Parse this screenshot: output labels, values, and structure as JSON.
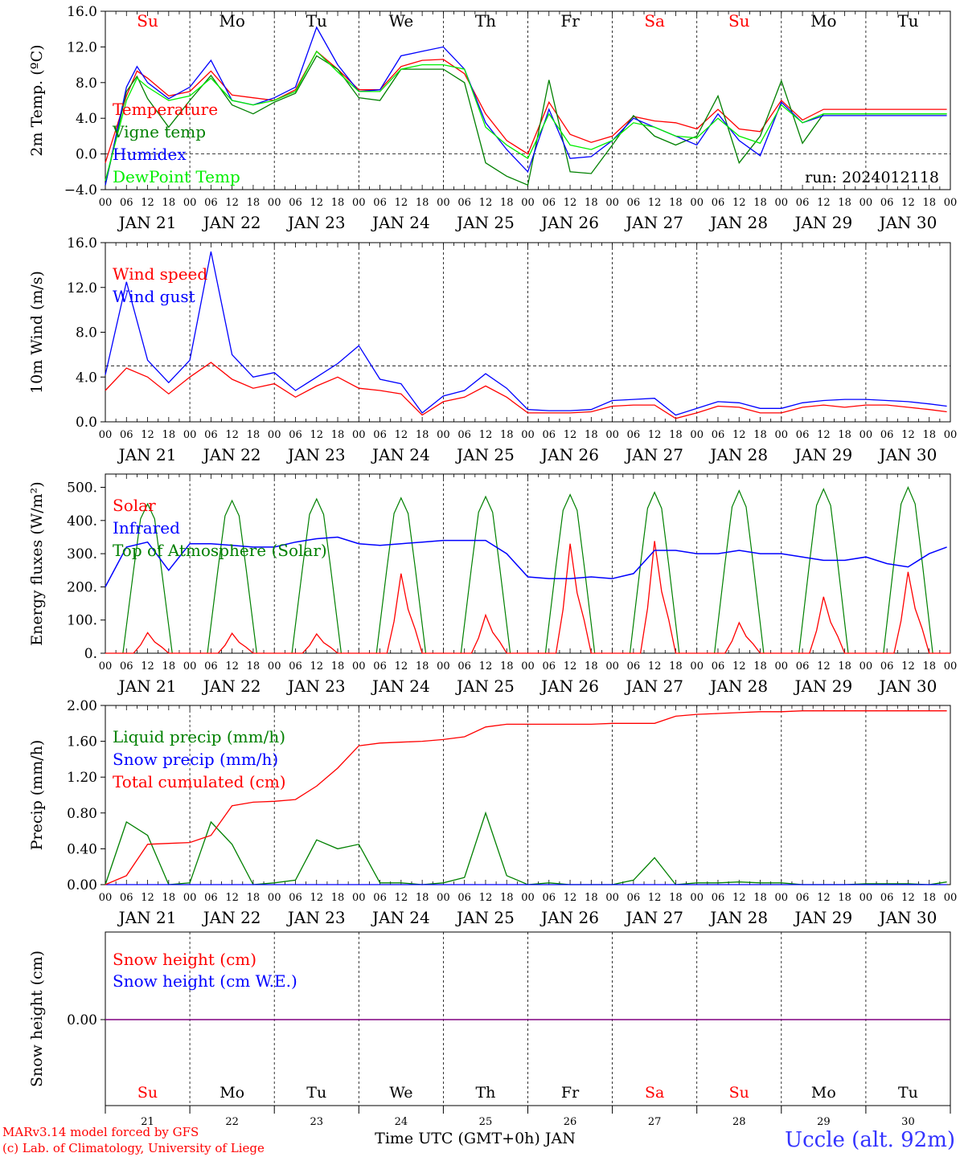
{
  "chart_data": [
    {
      "type": "line",
      "ylabel": "2m Temp. (ºC)",
      "yticks": [
        "16.0",
        "12.0",
        "8.0",
        "4.0",
        "0.0",
        "−4.0"
      ],
      "ylim": [
        -4,
        16
      ],
      "run_label": "run: 2024012118",
      "legend": [
        {
          "name": "Temperature",
          "color": "#ff0000"
        },
        {
          "name": "Vigne temp",
          "color": "#008000"
        },
        {
          "name": "Humidex",
          "color": "#0000ff"
        },
        {
          "name": "DewPoint Temp",
          "color": "#00ee00"
        }
      ],
      "x_hours": [
        0,
        6,
        9,
        12,
        18,
        24,
        30,
        36,
        42,
        48,
        54,
        60,
        66,
        72,
        78,
        84,
        90,
        96,
        102,
        108,
        114,
        120,
        126,
        132,
        138,
        144,
        150,
        156,
        162,
        168,
        174,
        180,
        186,
        192,
        198,
        204,
        210,
        216,
        222,
        228,
        234,
        239
      ],
      "series": [
        {
          "name": "Temperature",
          "color": "#ff0000",
          "values": [
            -1,
            6.5,
            9.3,
            8.5,
            6.5,
            7,
            9.3,
            6.6,
            6.3,
            6.0,
            7.2,
            11.5,
            9.5,
            7.2,
            7.2,
            9.8,
            10.5,
            10.6,
            9.0,
            4.5,
            1.5,
            0,
            5.8,
            2.2,
            1.3,
            2.0,
            4.2,
            3.7,
            3.5,
            2.8,
            5.0,
            2.8,
            2.5,
            6.0,
            3.8,
            5.0,
            5.0,
            5.0,
            5.0,
            5.0,
            5.0,
            5.0
          ]
        },
        {
          "name": "Vigne temp",
          "color": "#008000",
          "values": [
            -3.5,
            7.0,
            8.7,
            6.2,
            3.0,
            6.0,
            8.8,
            5.5,
            4.5,
            5.8,
            6.8,
            11.0,
            9.5,
            6.3,
            6.0,
            9.5,
            9.5,
            9.5,
            8.0,
            -1.0,
            -2.5,
            -3.5,
            8.3,
            -2.0,
            -2.2,
            1.0,
            4.3,
            2.0,
            1.0,
            2.0,
            6.5,
            -1.0,
            2.0,
            8.2,
            1.2,
            4.5,
            4.5,
            4.5,
            4.5,
            4.5,
            4.5,
            4.5
          ]
        },
        {
          "name": "Humidex",
          "color": "#0000ff",
          "values": [
            -3.5,
            7.5,
            9.8,
            8.0,
            6.2,
            7.5,
            10.5,
            6.0,
            5.5,
            6.3,
            7.5,
            14.2,
            10.0,
            7.0,
            7.2,
            11.0,
            11.5,
            12.0,
            9.5,
            3.5,
            0.5,
            -2.0,
            5.0,
            -0.5,
            -0.3,
            1.5,
            4.0,
            3.0,
            2.0,
            1.0,
            4.5,
            1.5,
            -0.2,
            5.8,
            3.5,
            4.3,
            4.3,
            4.3,
            4.3,
            4.3,
            4.3,
            4.3
          ]
        },
        {
          "name": "DewPoint Temp",
          "color": "#00ee00",
          "values": [
            -3,
            6,
            8.5,
            7.5,
            6,
            6.5,
            8.5,
            6.0,
            5.5,
            6.0,
            7.0,
            11.5,
            9.2,
            7.0,
            7.0,
            9.5,
            10.0,
            10.0,
            9.5,
            3.0,
            1.0,
            -0.5,
            4.5,
            1.0,
            0.5,
            1.5,
            3.5,
            3.0,
            2.0,
            1.8,
            4.0,
            2.0,
            1.2,
            5.5,
            3.5,
            4.5,
            4.5,
            4.5,
            4.5,
            4.5,
            4.5,
            4.5
          ]
        }
      ]
    },
    {
      "type": "line",
      "ylabel": "10m Wind (m/s)",
      "yticks": [
        "16.0",
        "12.0",
        "8.0",
        "4.0",
        "0.0"
      ],
      "ylim": [
        0,
        16
      ],
      "reference_line": 5.0,
      "legend": [
        {
          "name": "Wind speed",
          "color": "#ff0000"
        },
        {
          "name": "Wind gust",
          "color": "#0000ff"
        }
      ],
      "x_hours": [
        0,
        6,
        12,
        18,
        24,
        30,
        36,
        42,
        48,
        54,
        60,
        66,
        72,
        78,
        84,
        90,
        96,
        102,
        108,
        114,
        120,
        126,
        132,
        138,
        144,
        150,
        156,
        162,
        168,
        174,
        180,
        186,
        192,
        198,
        204,
        210,
        216,
        222,
        228,
        234,
        239
      ],
      "series": [
        {
          "name": "Wind speed",
          "color": "#ff0000",
          "values": [
            2.8,
            4.8,
            4.0,
            2.5,
            4.0,
            5.3,
            3.8,
            3.0,
            3.4,
            2.2,
            3.2,
            4.0,
            3.0,
            2.8,
            2.5,
            0.6,
            1.8,
            2.2,
            3.2,
            2.2,
            0.8,
            0.8,
            0.8,
            0.9,
            1.4,
            1.5,
            1.5,
            0.3,
            0.8,
            1.4,
            1.3,
            0.8,
            0.8,
            1.3,
            1.5,
            1.3,
            1.5,
            1.5,
            1.3,
            1.1,
            0.9
          ]
        },
        {
          "name": "Wind gust",
          "color": "#0000ff",
          "values": [
            4.2,
            12.5,
            5.5,
            3.5,
            5.5,
            15.2,
            6.0,
            4.0,
            4.4,
            2.8,
            4.0,
            5.2,
            6.8,
            3.8,
            3.4,
            0.8,
            2.3,
            2.8,
            4.3,
            3.0,
            1.1,
            1.0,
            1.0,
            1.1,
            1.9,
            2.0,
            2.1,
            0.6,
            1.2,
            1.8,
            1.7,
            1.2,
            1.2,
            1.7,
            1.9,
            2.0,
            2.0,
            1.9,
            1.8,
            1.6,
            1.4
          ]
        }
      ]
    },
    {
      "type": "line",
      "ylabel": "Energy fluxes (W/m²)",
      "yticks": [
        "500.",
        "400.",
        "300.",
        "200.",
        "100.",
        "0."
      ],
      "ylim": [
        0,
        540
      ],
      "legend": [
        {
          "name": "Solar",
          "color": "#ff0000"
        },
        {
          "name": "Infrared",
          "color": "#0000ff"
        },
        {
          "name": "Top of Atmosphere (Solar)",
          "color": "#008000"
        }
      ],
      "toa_peaks": [
        450,
        460,
        465,
        468,
        472,
        478,
        485,
        490,
        495,
        500
      ],
      "solar_peaks": [
        62,
        60,
        58,
        240,
        115,
        330,
        338,
        92,
        170,
        245
      ],
      "infrared": {
        "x_hours": [
          0,
          6,
          12,
          18,
          24,
          30,
          36,
          42,
          48,
          54,
          60,
          66,
          72,
          78,
          84,
          90,
          96,
          102,
          108,
          114,
          120,
          126,
          132,
          138,
          144,
          150,
          156,
          162,
          168,
          174,
          180,
          186,
          192,
          198,
          204,
          210,
          216,
          222,
          228,
          234,
          239
        ],
        "values": [
          200,
          320,
          335,
          250,
          330,
          330,
          325,
          320,
          320,
          335,
          345,
          350,
          330,
          325,
          330,
          335,
          340,
          340,
          340,
          300,
          230,
          225,
          225,
          230,
          225,
          240,
          310,
          310,
          300,
          300,
          310,
          300,
          300,
          290,
          280,
          280,
          290,
          270,
          260,
          300,
          320
        ]
      }
    },
    {
      "type": "line",
      "ylabel": "Precip (mm/h)",
      "yticks": [
        "2.00",
        "1.60",
        "1.20",
        "0.80",
        "0.40",
        "0.00"
      ],
      "ylim": [
        0,
        2
      ],
      "legend": [
        {
          "name": "Liquid precip (mm/h)",
          "color": "#008000"
        },
        {
          "name": "Snow precip (mm/h)",
          "color": "#0000ff"
        },
        {
          "name": "Total cumulated (cm)",
          "color": "#ff0000"
        }
      ],
      "x_hours": [
        0,
        6,
        12,
        18,
        24,
        30,
        36,
        42,
        48,
        54,
        60,
        66,
        72,
        78,
        84,
        90,
        96,
        102,
        108,
        114,
        120,
        126,
        132,
        138,
        144,
        150,
        156,
        162,
        168,
        174,
        180,
        186,
        192,
        198,
        204,
        210,
        216,
        222,
        228,
        234,
        239
      ],
      "series": [
        {
          "name": "Liquid precip (mm/h)",
          "color": "#008000",
          "values": [
            0,
            0.7,
            0.55,
            0,
            0.02,
            0.7,
            0.45,
            0,
            0.02,
            0.05,
            0.5,
            0.4,
            0.45,
            0.02,
            0.02,
            0,
            0.02,
            0.08,
            0.8,
            0.1,
            0,
            0.02,
            0,
            0,
            0,
            0.05,
            0.3,
            0,
            0.02,
            0.02,
            0.03,
            0.02,
            0.02,
            0,
            0,
            0,
            0.01,
            0.01,
            0.01,
            0,
            0.03
          ]
        },
        {
          "name": "Snow precip (mm/h)",
          "color": "#0000ff",
          "values": [
            0,
            0,
            0,
            0,
            0,
            0,
            0,
            0,
            0,
            0,
            0,
            0,
            0,
            0,
            0,
            0,
            0,
            0,
            0,
            0,
            0,
            0,
            0,
            0,
            0,
            0,
            0,
            0,
            0,
            0,
            0,
            0,
            0,
            0,
            0,
            0,
            0,
            0,
            0,
            0,
            0
          ]
        },
        {
          "name": "Total cumulated (cm)",
          "color": "#ff0000",
          "values": [
            0,
            0.1,
            0.45,
            0.46,
            0.47,
            0.55,
            0.88,
            0.92,
            0.93,
            0.95,
            1.1,
            1.3,
            1.55,
            1.58,
            1.59,
            1.6,
            1.62,
            1.65,
            1.76,
            1.79,
            1.79,
            1.79,
            1.79,
            1.79,
            1.8,
            1.8,
            1.8,
            1.88,
            1.9,
            1.91,
            1.92,
            1.93,
            1.93,
            1.94,
            1.94,
            1.94,
            1.94,
            1.94,
            1.94,
            1.94,
            1.94
          ]
        }
      ]
    },
    {
      "type": "line",
      "ylabel": "Snow height (cm)",
      "yticks": [
        "0.00"
      ],
      "legend": [
        {
          "name": "Snow height (cm)",
          "color": "#ff0000"
        },
        {
          "name": "Snow height (cm W.E.)",
          "color": "#0000ff"
        }
      ],
      "series": [
        {
          "name": "Snow height",
          "color": "#800080",
          "values": [
            0,
            0
          ]
        }
      ]
    }
  ],
  "x_axis": {
    "hour_ticks": [
      "00",
      "06",
      "12",
      "18"
    ],
    "last_tick": "00",
    "dates": [
      "JAN 21",
      "JAN 22",
      "JAN 23",
      "JAN 24",
      "JAN 25",
      "JAN 26",
      "JAN 27",
      "JAN 28",
      "JAN 29",
      "JAN 30"
    ],
    "weekdays": [
      {
        "label": "Su",
        "color": "#ff0000"
      },
      {
        "label": "Mo",
        "color": "#000000"
      },
      {
        "label": "Tu",
        "color": "#000000"
      },
      {
        "label": "We",
        "color": "#000000"
      },
      {
        "label": "Th",
        "color": "#000000"
      },
      {
        "label": "Fr",
        "color": "#000000"
      },
      {
        "label": "Sa",
        "color": "#ff0000"
      },
      {
        "label": "Su",
        "color": "#ff0000"
      },
      {
        "label": "Mo",
        "color": "#000000"
      },
      {
        "label": "Tu",
        "color": "#000000"
      }
    ],
    "day_numbers": [
      "21",
      "22",
      "23",
      "24",
      "25",
      "26",
      "27",
      "28",
      "29",
      "30"
    ],
    "title": "Time UTC (GMT+0h) JAN"
  },
  "footer": {
    "credit_line1": "MARv3.14 model forced by GFS",
    "credit_line2": "(c) Lab. of Climatology, University of Liege",
    "station": "Uccle (alt. 92m)"
  }
}
